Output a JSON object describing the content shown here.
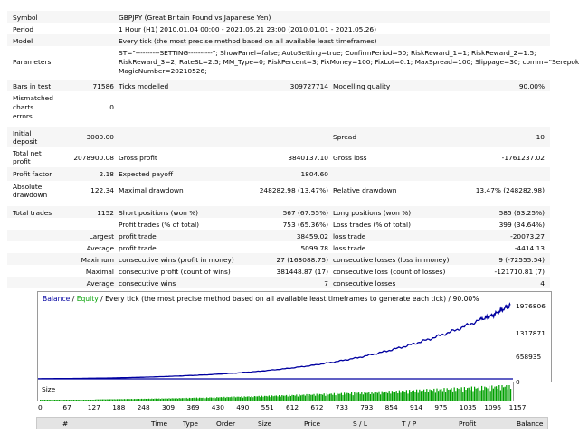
{
  "header": [
    {
      "label": "Symbol",
      "value": "GBPJPY (Great Britain Pound vs Japanese Yen)"
    },
    {
      "label": "Period",
      "value": "1 Hour (H1) 2010.01.04 00:00 - 2021.05.21 23:00 (2010.01.01 - 2021.05.26)"
    },
    {
      "label": "Model",
      "value": "Every tick (the most precise method based on all available least timeframes)"
    }
  ],
  "parameters": {
    "label": "Parameters",
    "lines": [
      "ST=\"----------SETTING----------\"; ShowPanel=false; AutoSetting=true; ConfirmPeriod=50; RiskReward_1=1; RiskReward_2=1.5;",
      "RiskReward_3=2; RateSL=2.5; MM_Type=0; RiskPercent=3; FixMoney=100; FixLot=0.1; MaxSpread=100; Slippage=30; comm=\"SerepokMT4\";",
      "MagicNumber=20210526;"
    ]
  },
  "stats": {
    "bars_label": "Bars in test",
    "bars_value": "71586",
    "ticks_label": "Ticks modelled",
    "ticks_value": "309727714",
    "quality_label": "Modelling quality",
    "quality_value": "90.00%",
    "mismatch_label_1": "Mismatched",
    "mismatch_label_2": "charts",
    "mismatch_label_3": "errors",
    "mismatch_value": "0",
    "deposit_label_1": "Initial",
    "deposit_label_2": "deposit",
    "deposit_value": "3000.00",
    "spread_label": "Spread",
    "spread_value": "10",
    "netprofit_label_1": "Total net",
    "netprofit_label_2": "profit",
    "netprofit_value": "2078900.08",
    "grossprofit_label": "Gross profit",
    "grossprofit_value": "3840137.10",
    "grossloss_label": "Gross loss",
    "grossloss_value": "-1761237.02",
    "pf_label": "Profit factor",
    "pf_value": "2.18",
    "payoff_label": "Expected payoff",
    "payoff_value": "1804.60",
    "absdd_label_1": "Absolute",
    "absdd_label_2": "drawdown",
    "absdd_value": "122.34",
    "maxdd_label": "Maximal drawdown",
    "maxdd_value": "248282.98 (13.47%)",
    "reldd_label": "Relative drawdown",
    "reldd_value": "13.47% (248282.98)",
    "trades_label": "Total trades",
    "trades_value": "1152",
    "short_label": "Short positions (won %)",
    "short_value": "567 (67.55%)",
    "long_label": "Long positions (won %)",
    "long_value": "585 (63.25%)",
    "pt_label": "Profit trades (% of total)",
    "pt_value": "753 (65.36%)",
    "lt_label": "Loss trades (% of total)",
    "lt_value": "399 (34.64%)",
    "largest_label": "Largest",
    "largest_pt_label": "profit trade",
    "largest_pt_value": "38459.02",
    "largest_lt_label": "loss trade",
    "largest_lt_value": "-20073.27",
    "average_label": "Average",
    "average_pt_label": "profit trade",
    "average_pt_value": "5099.78",
    "average_lt_label": "loss trade",
    "average_lt_value": "-4414.13",
    "maximum_label": "Maximum",
    "max_cw_label": "consecutive wins (profit in money)",
    "max_cw_value": "27 (163088.75)",
    "max_cl_label": "consecutive losses (loss in money)",
    "max_cl_value": "9 (-72555.54)",
    "maximal_label": "Maximal",
    "maximal_cp_label": "consecutive profit (count of wins)",
    "maximal_cp_value": "381448.87 (17)",
    "maximal_cl_label": "consecutive loss (count of losses)",
    "maximal_cl_value": "-121710.81 (7)",
    "avg2_label": "Average",
    "avg_cw_label": "consecutive wins",
    "avg_cw_value": "7",
    "avg_cl_label": "consecutive losses",
    "avg_cl_value": "4"
  },
  "chart": {
    "title_balance": "Balance",
    "title_sep": " / ",
    "title_equity": "Equity",
    "title_rest": " / Every tick (the most precise method based on all available least timeframes to generate each tick) / 90.00%",
    "balance_color": "#0000a0",
    "equity_color": "#00a000",
    "size_label": "Size",
    "y_labels": [
      "1976806",
      "1317871",
      "658935",
      "0"
    ],
    "x_labels": [
      "0",
      "67",
      "127",
      "188",
      "248",
      "309",
      "369",
      "430",
      "490",
      "551",
      "612",
      "672",
      "733",
      "793",
      "854",
      "914",
      "975",
      "1035",
      "1096",
      "1157"
    ]
  },
  "table_header": [
    "#",
    "Time",
    "Type",
    "Order",
    "Size",
    "Price",
    "S / L",
    "T / P",
    "Profit",
    "Balance"
  ],
  "chart_data": {
    "type": "line",
    "x": [
      0,
      60,
      120,
      180,
      240,
      300,
      360,
      420,
      480,
      540,
      600,
      660,
      720,
      780,
      840,
      900,
      960,
      1020,
      1080,
      1110,
      1140,
      1152
    ],
    "series": [
      {
        "name": "Balance",
        "values": [
          3000,
          8000,
          15000,
          25000,
          40000,
          60000,
          85000,
          115000,
          155000,
          205000,
          270000,
          350000,
          450000,
          570000,
          720000,
          890000,
          1090000,
          1320000,
          1600000,
          1720000,
          1920000,
          1990000
        ]
      }
    ],
    "ylim": [
      0,
      2100000
    ]
  }
}
